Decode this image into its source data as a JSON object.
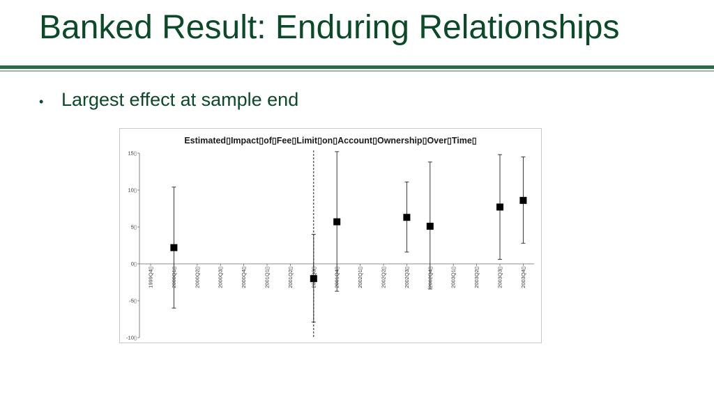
{
  "slide": {
    "title": "Banked Result: Enduring Relationships",
    "bullet_marker": "•",
    "bullet": "Largest effect at sample end"
  },
  "colors": {
    "title": "#0b4a28",
    "rule": "#2e6b4a",
    "marker": "#000000"
  },
  "chart_data": {
    "type": "scatter",
    "title": "Estimated▯Impact▯of▯Fee▯Limit▯on▯Account▯Ownership▯Over▯Time▯",
    "xlabel": "",
    "ylabel": "",
    "ylim": [
      -10,
      15
    ],
    "yticks": [
      -10,
      -5,
      0,
      5,
      10,
      15
    ],
    "ytick_labels": [
      "-10▯",
      "-5▯",
      "0▯",
      "5▯",
      "10▯",
      "15▯"
    ],
    "grid": false,
    "legend": "none",
    "categories": [
      "1999Q4▯",
      "2000Q1▯",
      "2000Q2▯",
      "2000Q3▯",
      "2000Q4▯",
      "2001Q1▯",
      "2001Q2▯",
      "2001Q3▯",
      "2001Q4▯",
      "2002Q1▯",
      "2002Q2▯",
      "2002Q3▯",
      "2002Q4▯",
      "2003Q1▯",
      "2003Q2▯",
      "2003Q3▯",
      "2003Q4▯"
    ],
    "points": [
      {
        "x": "2000Q1▯",
        "y": 2.2,
        "low": -6.0,
        "high": 10.4
      },
      {
        "x": "2001Q3▯",
        "y": -2.0,
        "low": -7.9,
        "high": 4.0
      },
      {
        "x": "2001Q4▯",
        "y": 5.7,
        "low": -3.7,
        "high": 15.2
      },
      {
        "x": "2002Q3▯",
        "y": 6.3,
        "low": 1.6,
        "high": 11.1
      },
      {
        "x": "2002Q4▯",
        "y": 5.1,
        "low": -3.4,
        "high": 13.8
      },
      {
        "x": "2003Q3▯",
        "y": 7.7,
        "low": 0.6,
        "high": 14.8
      },
      {
        "x": "2003Q4▯",
        "y": 8.6,
        "low": 2.8,
        "high": 14.5
      }
    ],
    "reference_line": {
      "x": "2001Q3▯",
      "style": "dashed"
    }
  }
}
